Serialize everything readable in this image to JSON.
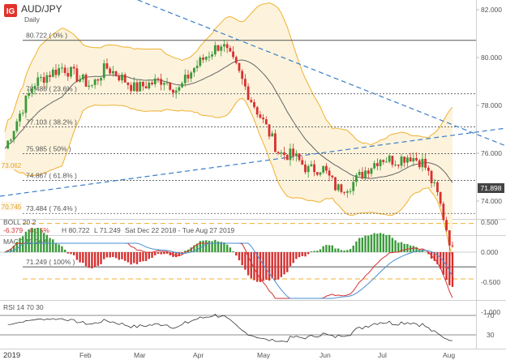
{
  "header": {
    "logo_text": "IG",
    "symbol": "AUD/JPY",
    "interval": "Daily",
    "brand_color": "#e0322b"
  },
  "price_panel": {
    "y_ticks": [
      "82.000",
      "80.000",
      "78.000",
      "76.000",
      "74.000"
    ],
    "last_price": "71.898",
    "left_badges": [
      "73.062",
      "70.745"
    ],
    "fib_levels": [
      {
        "label": "80.722 ( 0% )",
        "price": 80.722
      },
      {
        "label": "78.486 ( 23.6% )",
        "price": 78.486
      },
      {
        "label": "77.103 ( 38.2% )",
        "price": 77.103
      },
      {
        "label": "75.985 ( 50% )",
        "price": 75.985
      },
      {
        "label": "74.867 ( 61.8% )",
        "price": 74.867
      },
      {
        "label": "73.484 ( 76.4% )",
        "price": 73.484
      },
      {
        "label": "71.249 ( 100% )",
        "price": 71.249
      }
    ],
    "dashed_levels": [
      73.062,
      70.745
    ]
  },
  "boll_panel": {
    "title": "BOLL 20 2",
    "value_a": "-6.379",
    "value_b": "-8.15%",
    "high": "H 80.722",
    "low": "L 71.249",
    "range": "Sat Dec 22 2018 - Tue Aug 27 2019"
  },
  "macd_panel": {
    "title": "MACD 12 26 9",
    "y_ticks": [
      "0.500",
      "0.000",
      "-0.500",
      "-1.000"
    ]
  },
  "rsi_panel": {
    "title": "RSI 14 70 30",
    "y_ticks": [
      "70",
      "30"
    ]
  },
  "x_axis": {
    "labels": [
      "2019",
      "Feb",
      "Mar",
      "Apr",
      "May",
      "Jun",
      "Jul",
      "Aug"
    ]
  },
  "colors": {
    "up": "#3a9a3a",
    "down": "#d73030",
    "boll": "#f0b030",
    "sma": "#666666",
    "trend": "#3a7ec8",
    "fib": "#555555",
    "dash_level": "#f0b030",
    "macd_line": "#d73030",
    "signal_line": "#4a8ed0"
  },
  "chart_data": {
    "type": "candlestick",
    "title": "AUD/JPY",
    "subtitle": "Daily",
    "ylim": [
      70.5,
      82.3
    ],
    "dates": [
      "2019-01-02",
      "2019-01-07",
      "2019-01-14",
      "2019-01-21",
      "2019-01-28",
      "2019-02-04",
      "2019-02-11",
      "2019-02-18",
      "2019-02-25",
      "2019-03-04",
      "2019-03-11",
      "2019-03-18",
      "2019-03-25",
      "2019-04-01",
      "2019-04-08",
      "2019-04-15",
      "2019-04-22",
      "2019-04-29",
      "2019-05-06",
      "2019-05-13",
      "2019-05-20",
      "2019-05-27",
      "2019-06-03",
      "2019-06-10",
      "2019-06-17",
      "2019-06-24",
      "2019-07-01",
      "2019-07-08",
      "2019-07-15",
      "2019-07-22",
      "2019-07-29",
      "2019-08-02"
    ],
    "close": [
      76.2,
      77.6,
      78.9,
      79.3,
      79.6,
      79.2,
      78.8,
      79.6,
      79.2,
      78.7,
      78.9,
      79.1,
      78.6,
      79.5,
      80.1,
      80.6,
      79.6,
      78.3,
      77.2,
      76.0,
      75.9,
      75.3,
      75.4,
      74.5,
      74.7,
      75.3,
      75.8,
      75.7,
      75.9,
      75.6,
      74.2,
      71.9
    ],
    "indicators": {
      "bollinger": {
        "period": 20,
        "std": 2
      },
      "macd": {
        "fast": 12,
        "slow": 26,
        "signal": 9
      },
      "rsi": {
        "period": 14,
        "levels": [
          70,
          30
        ]
      }
    }
  }
}
